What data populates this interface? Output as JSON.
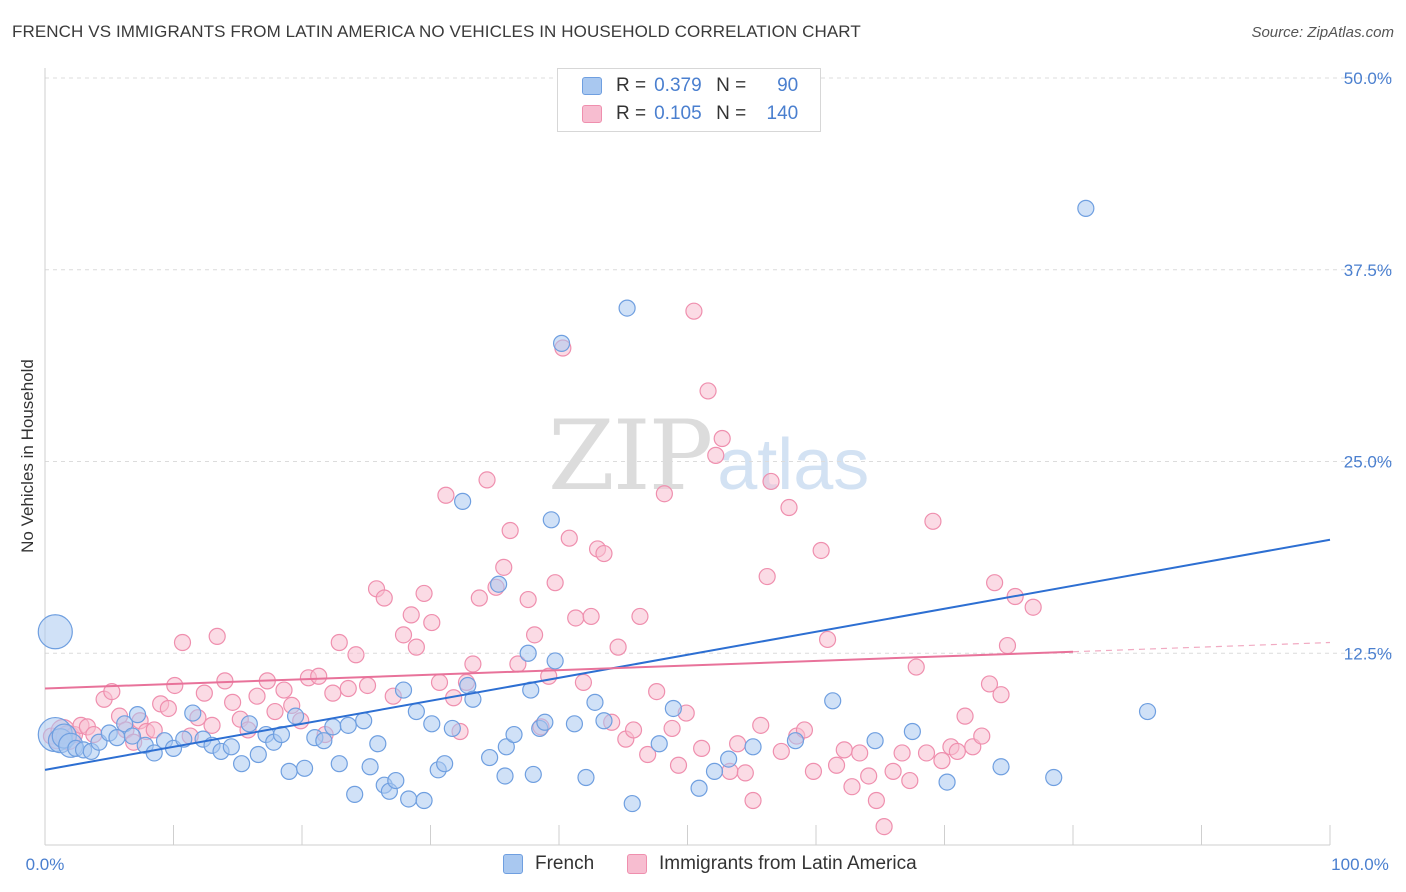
{
  "title": "FRENCH VS IMMIGRANTS FROM LATIN AMERICA NO VEHICLES IN HOUSEHOLD CORRELATION CHART",
  "source": "Source: ZipAtlas.com",
  "watermark": {
    "zip": "ZIP",
    "atlas": "atlas"
  },
  "colors": {
    "blue_fill": "#a9c8f0",
    "blue_stroke": "#6f9fe0",
    "blue_line": "#2d6fd2",
    "pink_fill": "#f7bdd0",
    "pink_stroke": "#ef8fae",
    "pink_line": "#e8729a",
    "axis_text": "#4a7fcf",
    "grid": "#dcdcdc"
  },
  "legend": {
    "rows": [
      {
        "r_label": "R =",
        "r_value": "0.379",
        "n_label": "N =",
        "n_value": "90"
      },
      {
        "r_label": "R =",
        "r_value": "0.105",
        "n_label": "N =",
        "n_value": "140"
      }
    ]
  },
  "bottom_legend": {
    "french": "French",
    "latin": "Immigrants from Latin America"
  },
  "chart_data": {
    "type": "scatter",
    "title": "FRENCH VS IMMIGRANTS FROM LATIN AMERICA NO VEHICLES IN HOUSEHOLD CORRELATION CHART",
    "xlabel": "",
    "ylabel": "No Vehicles in Household",
    "xlim": [
      0,
      100
    ],
    "ylim": [
      0,
      50
    ],
    "x_tick_labels": [
      "0.0%",
      "100.0%"
    ],
    "y_ticks": [
      12.5,
      25.0,
      37.5,
      50.0
    ],
    "y_tick_labels": [
      "12.5%",
      "25.0%",
      "37.5%",
      "50.0%"
    ],
    "grid": true,
    "legend_position": "top-center",
    "series": [
      {
        "name": "French",
        "r": 0.379,
        "n": 90,
        "trend": {
          "x": [
            0,
            100
          ],
          "y": [
            4.9,
            19.9
          ]
        },
        "points": [
          [
            0.8,
            7.2,
            3
          ],
          [
            0.8,
            13.9,
            3
          ],
          [
            1.2,
            6.8,
            2
          ],
          [
            1.5,
            7.1,
            2
          ],
          [
            2.0,
            6.5,
            2
          ],
          [
            2.4,
            6.3,
            1
          ],
          [
            3.0,
            6.2,
            1
          ],
          [
            3.6,
            6.1,
            1
          ],
          [
            4.2,
            6.7,
            1
          ],
          [
            5.0,
            7.3,
            1
          ],
          [
            5.6,
            7.0,
            1
          ],
          [
            6.2,
            7.9,
            1
          ],
          [
            6.8,
            7.1,
            1
          ],
          [
            7.2,
            8.5,
            1
          ],
          [
            7.8,
            6.5,
            1
          ],
          [
            8.5,
            6.0,
            1
          ],
          [
            9.3,
            6.8,
            1
          ],
          [
            10.0,
            6.3,
            1
          ],
          [
            10.8,
            6.9,
            1
          ],
          [
            11.5,
            8.6,
            1
          ],
          [
            12.3,
            6.9,
            1
          ],
          [
            13.0,
            6.5,
            1
          ],
          [
            13.7,
            6.1,
            1
          ],
          [
            14.5,
            6.4,
            1
          ],
          [
            15.3,
            5.3,
            1
          ],
          [
            15.9,
            7.9,
            1
          ],
          [
            16.6,
            5.9,
            1
          ],
          [
            17.2,
            7.2,
            1
          ],
          [
            17.8,
            6.7,
            1
          ],
          [
            18.4,
            7.2,
            1
          ],
          [
            19.0,
            4.8,
            1
          ],
          [
            19.5,
            8.4,
            1
          ],
          [
            20.2,
            5.0,
            1
          ],
          [
            21.0,
            7.0,
            1
          ],
          [
            21.7,
            6.8,
            1
          ],
          [
            22.4,
            7.7,
            1
          ],
          [
            22.9,
            5.3,
            1
          ],
          [
            23.6,
            7.8,
            1
          ],
          [
            24.1,
            3.3,
            1
          ],
          [
            24.8,
            8.1,
            1
          ],
          [
            25.3,
            5.1,
            1
          ],
          [
            25.9,
            6.6,
            1
          ],
          [
            26.4,
            3.9,
            1
          ],
          [
            26.8,
            3.5,
            1
          ],
          [
            27.3,
            4.2,
            1
          ],
          [
            27.9,
            10.1,
            1
          ],
          [
            28.3,
            3.0,
            1
          ],
          [
            28.9,
            8.7,
            1
          ],
          [
            29.5,
            2.9,
            1
          ],
          [
            30.1,
            7.9,
            1
          ],
          [
            30.6,
            4.9,
            1
          ],
          [
            31.1,
            5.3,
            1
          ],
          [
            31.7,
            7.6,
            1
          ],
          [
            32.5,
            22.4,
            1
          ],
          [
            32.9,
            10.4,
            1
          ],
          [
            33.3,
            9.5,
            1
          ],
          [
            34.6,
            5.7,
            1
          ],
          [
            35.3,
            17.0,
            1
          ],
          [
            35.8,
            4.5,
            1
          ],
          [
            35.9,
            6.4,
            1
          ],
          [
            36.5,
            7.2,
            1
          ],
          [
            37.6,
            12.5,
            1
          ],
          [
            37.8,
            10.1,
            1
          ],
          [
            38.0,
            4.6,
            1
          ],
          [
            38.5,
            7.6,
            1
          ],
          [
            38.9,
            8.0,
            1
          ],
          [
            39.4,
            21.2,
            1
          ],
          [
            39.7,
            12.0,
            1
          ],
          [
            40.2,
            32.7,
            1
          ],
          [
            41.2,
            7.9,
            1
          ],
          [
            42.1,
            4.4,
            1
          ],
          [
            42.8,
            9.3,
            1
          ],
          [
            43.5,
            8.1,
            1
          ],
          [
            45.3,
            35.0,
            1
          ],
          [
            45.7,
            2.7,
            1
          ],
          [
            47.8,
            6.6,
            1
          ],
          [
            48.9,
            8.9,
            1
          ],
          [
            50.9,
            3.7,
            1
          ],
          [
            52.1,
            4.8,
            1
          ],
          [
            53.2,
            5.6,
            1
          ],
          [
            55.1,
            6.4,
            1
          ],
          [
            58.4,
            6.8,
            1
          ],
          [
            61.3,
            9.4,
            1
          ],
          [
            64.6,
            6.8,
            1
          ],
          [
            67.5,
            7.4,
            1
          ],
          [
            70.2,
            4.1,
            1
          ],
          [
            74.4,
            5.1,
            1
          ],
          [
            78.5,
            4.4,
            1
          ],
          [
            81.0,
            41.5,
            1
          ],
          [
            85.8,
            8.7,
            1
          ]
        ]
      },
      {
        "name": "Immigrants from Latin America",
        "r": 0.105,
        "n": 140,
        "trend": {
          "x": [
            0,
            80
          ],
          "y": [
            10.2,
            12.6
          ]
        },
        "trend_dashed": {
          "x": [
            80,
            100
          ],
          "y": [
            12.6,
            13.2
          ]
        },
        "points": [
          [
            0.5,
            7.1,
            1
          ],
          [
            0.9,
            6.8,
            1
          ],
          [
            1.4,
            7.4,
            2
          ],
          [
            1.8,
            7.0,
            2
          ],
          [
            2.3,
            7.2,
            1
          ],
          [
            2.8,
            7.8,
            1
          ],
          [
            3.3,
            7.7,
            1
          ],
          [
            3.8,
            7.2,
            1
          ],
          [
            4.6,
            9.5,
            1
          ],
          [
            5.2,
            10.0,
            1
          ],
          [
            5.8,
            8.4,
            1
          ],
          [
            6.3,
            7.5,
            1
          ],
          [
            6.9,
            6.7,
            1
          ],
          [
            7.4,
            8.1,
            1
          ],
          [
            7.9,
            7.4,
            1
          ],
          [
            8.5,
            7.5,
            1
          ],
          [
            9.0,
            9.2,
            1
          ],
          [
            9.6,
            8.9,
            1
          ],
          [
            10.1,
            10.4,
            1
          ],
          [
            10.7,
            13.2,
            1
          ],
          [
            11.3,
            7.1,
            1
          ],
          [
            11.9,
            8.3,
            1
          ],
          [
            12.4,
            9.9,
            1
          ],
          [
            13.0,
            7.8,
            1
          ],
          [
            13.4,
            13.6,
            1
          ],
          [
            14.0,
            10.7,
            1
          ],
          [
            14.6,
            9.3,
            1
          ],
          [
            15.2,
            8.2,
            1
          ],
          [
            15.8,
            7.5,
            1
          ],
          [
            16.5,
            9.7,
            1
          ],
          [
            17.3,
            10.7,
            1
          ],
          [
            17.9,
            8.7,
            1
          ],
          [
            18.6,
            10.1,
            1
          ],
          [
            19.2,
            9.1,
            1
          ],
          [
            19.9,
            8.1,
            1
          ],
          [
            20.5,
            10.9,
            1
          ],
          [
            21.3,
            11.0,
            1
          ],
          [
            21.8,
            7.2,
            1
          ],
          [
            22.4,
            9.9,
            1
          ],
          [
            22.9,
            13.2,
            1
          ],
          [
            23.6,
            10.2,
            1
          ],
          [
            24.2,
            12.4,
            1
          ],
          [
            25.1,
            10.4,
            1
          ],
          [
            25.8,
            16.7,
            1
          ],
          [
            26.4,
            16.1,
            1
          ],
          [
            27.1,
            9.7,
            1
          ],
          [
            27.9,
            13.7,
            1
          ],
          [
            28.5,
            15.0,
            1
          ],
          [
            28.9,
            12.9,
            1
          ],
          [
            29.5,
            16.4,
            1
          ],
          [
            30.1,
            14.5,
            1
          ],
          [
            30.7,
            10.6,
            1
          ],
          [
            31.2,
            22.8,
            1
          ],
          [
            31.8,
            9.6,
            1
          ],
          [
            32.3,
            7.4,
            1
          ],
          [
            32.8,
            10.6,
            1
          ],
          [
            33.3,
            11.8,
            1
          ],
          [
            33.8,
            16.1,
            1
          ],
          [
            34.4,
            23.8,
            1
          ],
          [
            35.1,
            16.8,
            1
          ],
          [
            35.7,
            18.1,
            1
          ],
          [
            36.2,
            20.5,
            1
          ],
          [
            36.8,
            11.8,
            1
          ],
          [
            37.6,
            16.0,
            1
          ],
          [
            38.1,
            13.7,
            1
          ],
          [
            38.6,
            7.7,
            1
          ],
          [
            39.2,
            11.0,
            1
          ],
          [
            39.7,
            17.1,
            1
          ],
          [
            40.3,
            32.4,
            1
          ],
          [
            40.8,
            20.0,
            1
          ],
          [
            41.3,
            14.8,
            1
          ],
          [
            41.9,
            10.6,
            1
          ],
          [
            42.5,
            14.9,
            1
          ],
          [
            43.0,
            19.3,
            1
          ],
          [
            43.5,
            19.0,
            1
          ],
          [
            44.1,
            8.0,
            1
          ],
          [
            44.6,
            12.9,
            1
          ],
          [
            45.2,
            6.9,
            1
          ],
          [
            45.8,
            7.5,
            1
          ],
          [
            46.3,
            14.9,
            1
          ],
          [
            46.9,
            5.9,
            1
          ],
          [
            47.6,
            10.0,
            1
          ],
          [
            48.2,
            22.9,
            1
          ],
          [
            48.8,
            7.6,
            1
          ],
          [
            49.3,
            5.2,
            1
          ],
          [
            49.9,
            8.6,
            1
          ],
          [
            50.5,
            34.8,
            1
          ],
          [
            51.1,
            6.3,
            1
          ],
          [
            51.6,
            29.6,
            1
          ],
          [
            52.2,
            25.4,
            1
          ],
          [
            52.7,
            26.5,
            1
          ],
          [
            53.3,
            4.8,
            1
          ],
          [
            53.9,
            6.6,
            1
          ],
          [
            54.5,
            4.7,
            1
          ],
          [
            55.1,
            2.9,
            1
          ],
          [
            55.7,
            7.8,
            1
          ],
          [
            56.2,
            17.5,
            1
          ],
          [
            56.5,
            23.7,
            1
          ],
          [
            57.3,
            6.1,
            1
          ],
          [
            57.9,
            22.0,
            1
          ],
          [
            58.5,
            7.1,
            1
          ],
          [
            59.1,
            7.5,
            1
          ],
          [
            59.8,
            4.8,
            1
          ],
          [
            60.4,
            19.2,
            1
          ],
          [
            60.9,
            13.4,
            1
          ],
          [
            61.6,
            5.2,
            1
          ],
          [
            62.2,
            6.2,
            1
          ],
          [
            62.8,
            3.8,
            1
          ],
          [
            63.4,
            6.0,
            1
          ],
          [
            64.1,
            4.5,
            1
          ],
          [
            64.7,
            2.9,
            1
          ],
          [
            65.3,
            1.2,
            1
          ],
          [
            66.0,
            4.8,
            1
          ],
          [
            66.7,
            6.0,
            1
          ],
          [
            67.3,
            4.2,
            1
          ],
          [
            67.8,
            11.6,
            1
          ],
          [
            68.6,
            6.0,
            1
          ],
          [
            69.1,
            21.1,
            1
          ],
          [
            69.8,
            5.5,
            1
          ],
          [
            70.5,
            6.4,
            1
          ],
          [
            71.0,
            6.1,
            1
          ],
          [
            71.6,
            8.4,
            1
          ],
          [
            72.2,
            6.4,
            1
          ],
          [
            72.9,
            7.1,
            1
          ],
          [
            73.5,
            10.5,
            1
          ],
          [
            73.9,
            17.1,
            1
          ],
          [
            74.4,
            9.8,
            1
          ],
          [
            74.9,
            13.0,
            1
          ],
          [
            75.5,
            16.2,
            1
          ],
          [
            76.9,
            15.5,
            1
          ]
        ]
      }
    ]
  }
}
